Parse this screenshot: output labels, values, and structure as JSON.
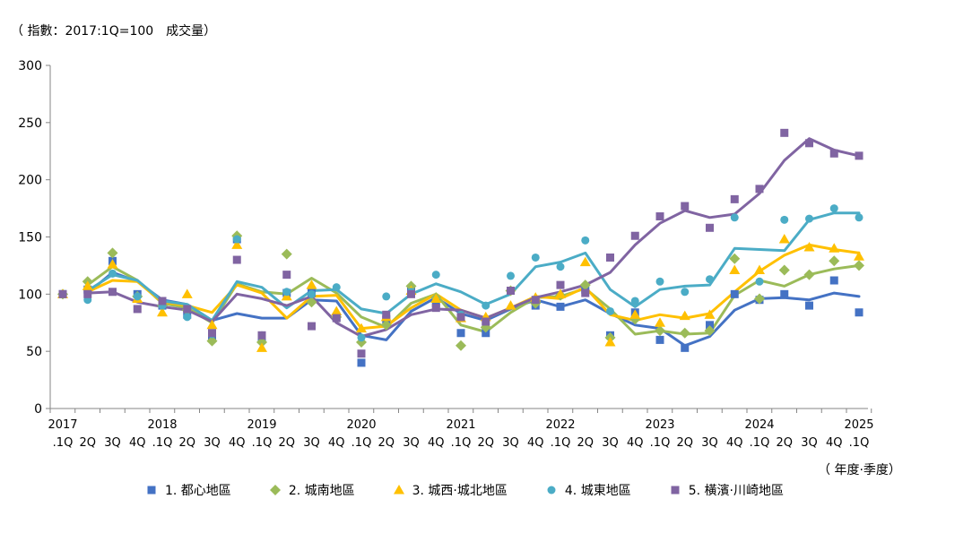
{
  "unit_label": "（ 指數：2017:1Q=100　成交量）",
  "period_label": "（ 年度·季度）",
  "chart_data": {
    "type": "line",
    "ylim": [
      0,
      300
    ],
    "yticks": [
      0,
      50,
      100,
      150,
      200,
      250,
      300
    ],
    "grid": false,
    "legend_position": "bottom",
    "x_year_labels": [
      "2017",
      "2018",
      "2019",
      "2020",
      "2021",
      "2022",
      "2023",
      "2024",
      "2025"
    ],
    "x_quarter_labels": [
      ".1Q",
      "2Q",
      "3Q",
      "4Q",
      ".1Q",
      "2Q",
      "3Q",
      "4Q",
      ".1Q",
      "2Q",
      "3Q",
      "4Q",
      ".1Q",
      "2Q",
      "3Q",
      "4Q",
      ".1Q",
      "2Q",
      "3Q",
      "4Q",
      ".1Q",
      "2Q",
      "3Q",
      "4Q",
      ".1Q",
      "2Q",
      "3Q",
      "4Q",
      ".1Q",
      "2Q",
      "3Q",
      "4Q",
      ".1Q"
    ],
    "series": [
      {
        "name": "1. 都心地區",
        "color": "#4472c4",
        "marker": "square",
        "points": [
          100,
          104,
          129,
          100,
          90,
          82,
          62,
          148,
          61,
          101,
          101,
          80,
          40,
          78,
          104,
          92,
          66,
          66,
          103,
          90,
          89,
          104,
          64,
          84,
          60,
          53,
          73,
          100,
          95,
          100,
          90,
          112,
          84
        ],
        "trend": [
          null,
          101,
          119,
          111,
          95,
          91,
          77,
          83,
          79,
          79,
          95,
          94,
          64,
          60,
          85,
          97,
          83,
          77,
          87,
          95,
          89,
          95,
          83,
          73,
          70,
          55,
          63,
          86,
          96,
          97,
          95,
          101,
          98
        ]
      },
      {
        "name": "2. 城南地區",
        "color": "#9bbb59",
        "marker": "diamond",
        "points": [
          100,
          111,
          136,
          98,
          90,
          86,
          59,
          151,
          58,
          135,
          93,
          80,
          58,
          73,
          107,
          97,
          55,
          71,
          103,
          92,
          99,
          108,
          62,
          78,
          68,
          66,
          68,
          131,
          96,
          121,
          117,
          129,
          125
        ],
        "trend": [
          null,
          108,
          124,
          112,
          92,
          88,
          75,
          109,
          102,
          100,
          114,
          101,
          80,
          71,
          92,
          100,
          73,
          67,
          84,
          97,
          98,
          105,
          87,
          65,
          68,
          65,
          66,
          99,
          112,
          107,
          117,
          122,
          125
        ]
      },
      {
        "name": "3. 城西·城北地區",
        "color": "#ffc000",
        "marker": "triangle",
        "points": [
          100,
          107,
          126,
          96,
          84,
          100,
          73,
          143,
          53,
          98,
          108,
          85,
          70,
          80,
          103,
          96,
          79,
          80,
          90,
          97,
          100,
          128,
          58,
          82,
          75,
          81,
          82,
          121,
          121,
          148,
          141,
          140,
          133
        ],
        "trend": [
          null,
          102,
          112,
          111,
          93,
          90,
          84,
          108,
          101,
          79,
          98,
          99,
          70,
          72,
          88,
          100,
          86,
          79,
          88,
          98,
          96,
          106,
          82,
          77,
          82,
          79,
          83,
          102,
          120,
          134,
          143,
          139,
          136
        ]
      },
      {
        "name": "4. 城東地區",
        "color": "#4bacc6",
        "marker": "circle",
        "points": [
          100,
          95,
          118,
          98,
          90,
          80,
          65,
          148,
          64,
          102,
          100,
          106,
          62,
          98,
          102,
          117,
          82,
          90,
          116,
          132,
          124,
          147,
          85,
          94,
          111,
          102,
          113,
          167,
          111,
          165,
          166,
          175,
          167
        ],
        "trend": [
          null,
          103,
          117,
          112,
          94,
          91,
          77,
          111,
          106,
          88,
          103,
          104,
          87,
          83,
          100,
          109,
          102,
          91,
          100,
          124,
          128,
          136,
          104,
          89,
          104,
          107,
          108,
          140,
          139,
          138,
          165,
          171,
          171
        ]
      },
      {
        "name": "5. 橫濱·川崎地區",
        "color": "#8064a2",
        "marker": "square",
        "points": [
          100,
          100,
          102,
          87,
          94,
          87,
          66,
          130,
          64,
          117,
          72,
          79,
          48,
          82,
          100,
          88,
          80,
          76,
          103,
          95,
          108,
          101,
          132,
          151,
          168,
          177,
          158,
          183,
          192,
          241,
          232,
          223,
          221
        ],
        "trend": [
          null,
          101,
          102,
          93,
          89,
          86,
          76,
          100,
          96,
          90,
          98,
          75,
          63,
          69,
          82,
          87,
          86,
          79,
          88,
          97,
          102,
          108,
          119,
          143,
          162,
          173,
          167,
          170,
          188,
          217,
          236,
          226,
          221
        ]
      }
    ]
  }
}
